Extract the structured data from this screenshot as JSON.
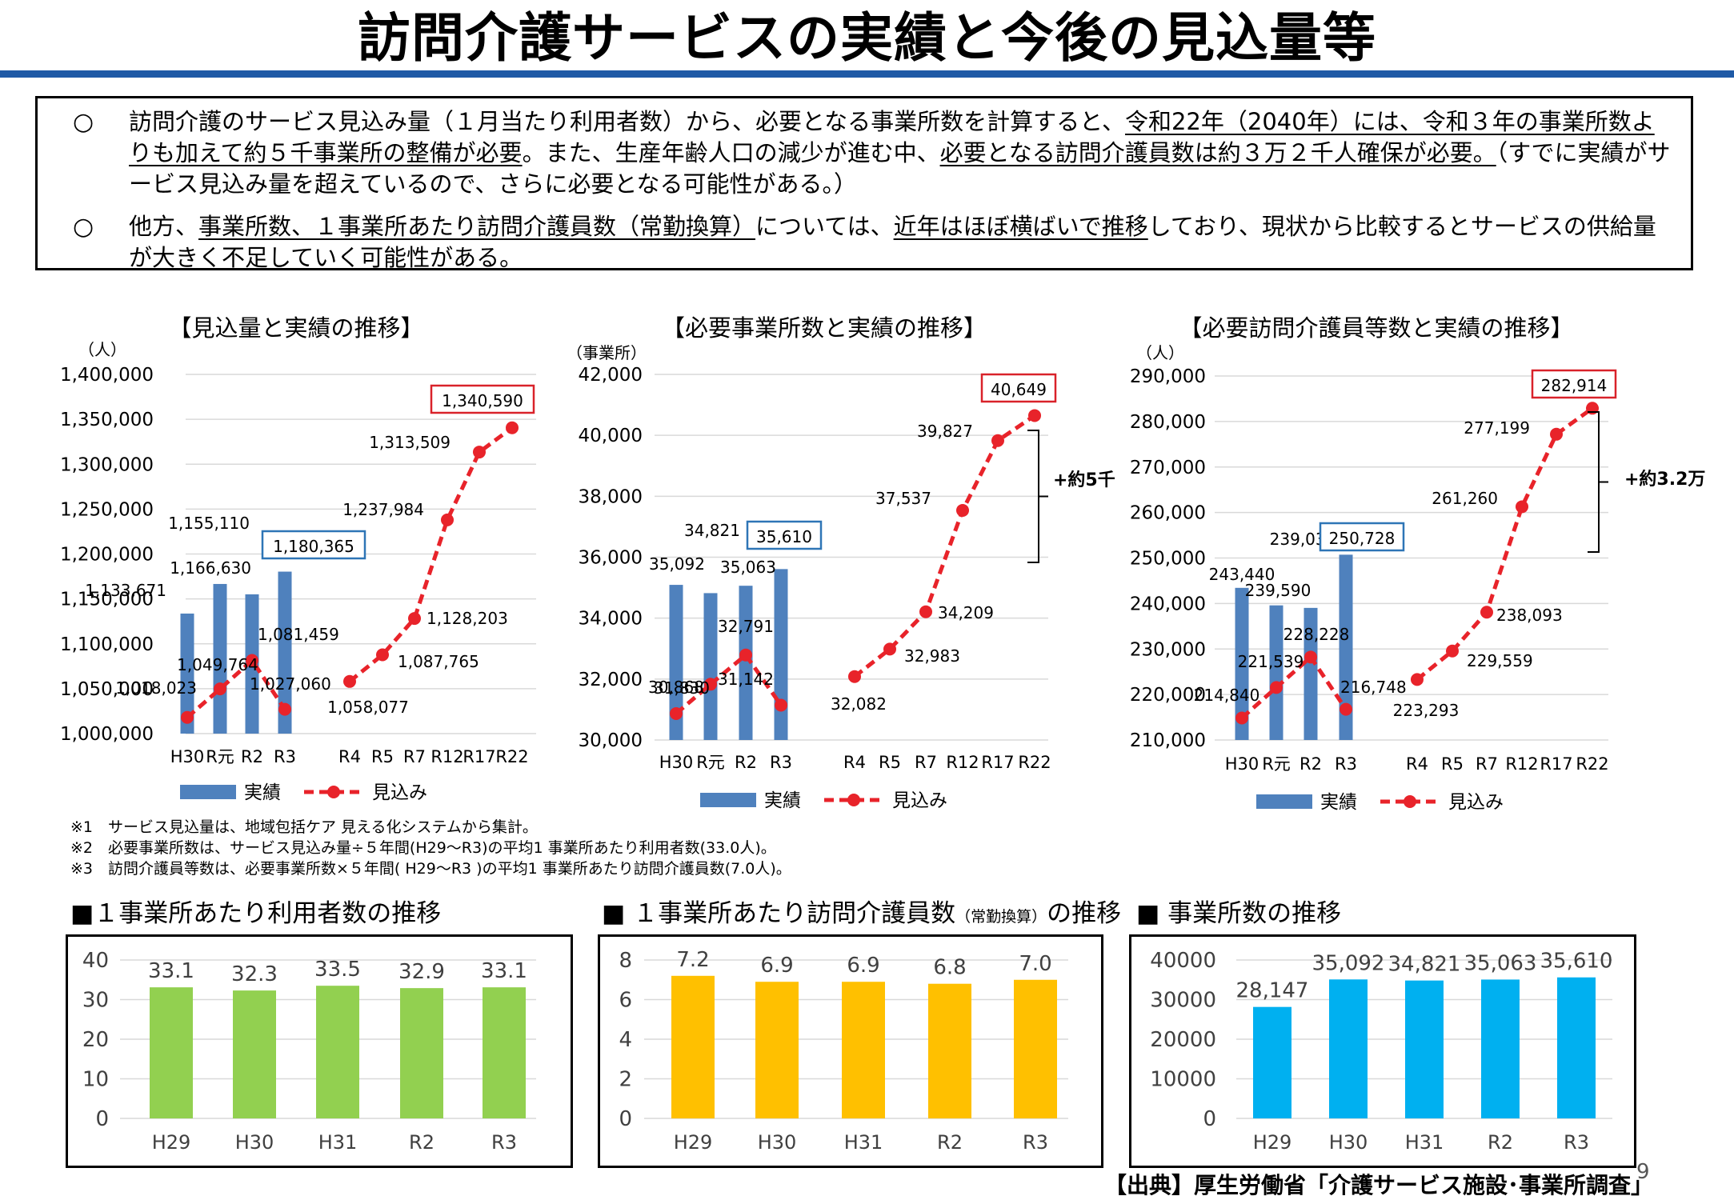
{
  "title": "訪問介護サービスの実績と今後の見込量等",
  "summary": {
    "p1_mark": "○",
    "p1_a": "訪問介護のサービス見込み量（１月当たり利用者数）から、必要となる事業所数を計算すると、",
    "p1_b": "令和22年（2040年）には、令和３年の事業所数よりも加えて約５千事業所の整備が必要",
    "p1_c": "。また、生産年齢人口の減少が進む中、",
    "p1_d": "必要となる訪問介護員数は約３万２千人確保が必要。",
    "p1_e": "（すでに実績がサービス見込み量を超えているので、さらに必要となる可能性がある。）",
    "p2_mark": "○",
    "p2_a": "他方、",
    "p2_b": "事業所数、１事業所あたり訪問介護員数（常勤換算）",
    "p2_c": "については、",
    "p2_d": "近年はほぼ横ばいで推移",
    "p2_e": "しており、現状から比較するとサービスの供給量が大きく不足していく可能性がある。"
  },
  "legend": {
    "actual": "実績",
    "forecast": "見込み"
  },
  "colors": {
    "actual_bar": "#4f81bd",
    "forecast_line": "#e8232a",
    "green": "#92d050",
    "yellow": "#ffc000",
    "cyan": "#00b0f0",
    "rule_blue": "#1f5aa6",
    "box_red": "#d9222a",
    "box_blue": "#2e75b6"
  },
  "chart_data": [
    {
      "type": "bar+line",
      "title": "【見込量と実績の推移】",
      "unit": "（人）",
      "categories": [
        "H30",
        "R元",
        "R2",
        "R3",
        "R4",
        "R5",
        "R7",
        "R12",
        "R17",
        "R22"
      ],
      "ylim": [
        1000000,
        1400000
      ],
      "yticks": [
        1000000,
        1050000,
        1100000,
        1150000,
        1200000,
        1250000,
        1300000,
        1350000,
        1400000
      ],
      "ytick_labels": [
        "1,000,000",
        "1,050,000",
        "1,100,000",
        "1,150,000",
        "1,200,000",
        "1,250,000",
        "1,300,000",
        "1,350,000",
        "1,400,000"
      ],
      "series": [
        {
          "name": "実績",
          "type": "bar",
          "values": [
            1133671,
            1166630,
            1155110,
            1180365,
            null,
            null,
            null,
            null,
            null,
            null
          ],
          "labels": [
            "1,133,671",
            "1,166,630",
            "1,155,110",
            "1,180,365"
          ]
        },
        {
          "name": "見込み",
          "type": "line",
          "values": [
            1018023,
            1049764,
            1081459,
            1027060,
            1058077,
            1087765,
            1128203,
            1237984,
            1313509,
            1340590
          ],
          "labels": [
            "1,018,023",
            "1,049,764",
            "1,081,459",
            "1,027,060",
            "1,058,077",
            "1,087,765",
            "1,128,203",
            "1,237,984",
            "1,313,509",
            "1,340,590"
          ]
        }
      ],
      "boxed_labels": [
        "1,180,365",
        "1,340,590"
      ],
      "bracket_label": ""
    },
    {
      "type": "bar+line",
      "title": "【必要事業所数と実績の推移】",
      "unit": "（事業所）",
      "categories": [
        "H30",
        "R元",
        "R2",
        "R3",
        "R4",
        "R5",
        "R7",
        "R12",
        "R17",
        "R22"
      ],
      "ylim": [
        30000,
        42000
      ],
      "yticks": [
        30000,
        32000,
        34000,
        36000,
        38000,
        40000,
        42000
      ],
      "ytick_labels": [
        "30,000",
        "32,000",
        "34,000",
        "36,000",
        "38,000",
        "40,000",
        "42,000"
      ],
      "series": [
        {
          "name": "実績",
          "type": "bar",
          "values": [
            35092,
            34821,
            35063,
            35610,
            null,
            null,
            null,
            null,
            null,
            null
          ],
          "labels": [
            "35,092",
            "34,821",
            "35,063",
            "35,610"
          ]
        },
        {
          "name": "見込み",
          "type": "line",
          "values": [
            30868,
            31830,
            32791,
            31142,
            32082,
            32983,
            34209,
            37537,
            39827,
            40649
          ],
          "labels": [
            "30,868",
            "31,830",
            "32,791",
            "31,142",
            "32,082",
            "32,983",
            "34,209",
            "37,537",
            "39,827",
            "40,649"
          ]
        }
      ],
      "boxed_labels": [
        "35,610",
        "40,649"
      ],
      "bracket_label": "+約5千"
    },
    {
      "type": "bar+line",
      "title": "【必要訪問介護員等数と実績の推移】",
      "unit": "（人）",
      "categories": [
        "H30",
        "R元",
        "R2",
        "R3",
        "R4",
        "R5",
        "R7",
        "R12",
        "R17",
        "R22"
      ],
      "ylim": [
        210000,
        290000
      ],
      "yticks": [
        210000,
        220000,
        230000,
        240000,
        250000,
        260000,
        270000,
        280000,
        290000
      ],
      "ytick_labels": [
        "210,000",
        "220,000",
        "230,000",
        "240,000",
        "250,000",
        "260,000",
        "270,000",
        "280,000",
        "290,000"
      ],
      "series": [
        {
          "name": "実績",
          "type": "bar",
          "values": [
            243440,
            239590,
            239036,
            250728,
            null,
            null,
            null,
            null,
            null,
            null
          ],
          "labels": [
            "243,440",
            "239,590",
            "239,036",
            "250,728"
          ]
        },
        {
          "name": "見込み",
          "type": "line",
          "values": [
            214840,
            221539,
            228228,
            216748,
            223293,
            229559,
            238093,
            261260,
            277199,
            282914
          ],
          "labels": [
            "214,840",
            "221,539",
            "228,228",
            "216,748",
            "223,293",
            "229,559",
            "238,093",
            "261,260",
            "277,199",
            "282,914"
          ]
        }
      ],
      "boxed_labels": [
        "250,728",
        "282,914"
      ],
      "bracket_label": "+約3.2万"
    },
    {
      "type": "bar",
      "title": "■１事業所あたり利用者数の推移",
      "categories": [
        "H29",
        "H30",
        "H31",
        "R2",
        "R3"
      ],
      "values": [
        33.1,
        32.3,
        33.5,
        32.9,
        33.1
      ],
      "labels": [
        "33.1",
        "32.3",
        "33.5",
        "32.9",
        "33.1"
      ],
      "ylim": [
        0,
        40
      ],
      "yticks": [
        0,
        10,
        20,
        30,
        40
      ],
      "ytick_labels": [
        "0",
        "10",
        "20",
        "30",
        "40"
      ],
      "color": "#92d050"
    },
    {
      "type": "bar",
      "title": "■ １事業所あたり訪問介護員数",
      "title_small": "（常勤換算）",
      "title_tail": "の推移",
      "categories": [
        "H29",
        "H30",
        "H31",
        "R2",
        "R3"
      ],
      "values": [
        7.2,
        6.9,
        6.9,
        6.8,
        7.0
      ],
      "labels": [
        "7.2",
        "6.9",
        "6.9",
        "6.8",
        "7.0"
      ],
      "ylim": [
        0,
        8
      ],
      "yticks": [
        0,
        2,
        4,
        6,
        8
      ],
      "ytick_labels": [
        "0",
        "2",
        "4",
        "6",
        "8"
      ],
      "color": "#ffc000"
    },
    {
      "type": "bar",
      "title": "■ 事業所数の推移",
      "categories": [
        "H29",
        "H30",
        "H31",
        "R2",
        "R3"
      ],
      "values": [
        28147,
        35092,
        34821,
        35063,
        35610
      ],
      "labels": [
        "28,147",
        "35,092",
        "34,821",
        "35,063",
        "35,610"
      ],
      "ylim": [
        0,
        40000
      ],
      "yticks": [
        0,
        10000,
        20000,
        30000,
        40000
      ],
      "ytick_labels": [
        "0",
        "10000",
        "20000",
        "30000",
        "40000"
      ],
      "color": "#00b0f0"
    }
  ],
  "notes": [
    "※1　サービス見込量は、地域包括ケア 見える化システムから集計。",
    "※2　必要事業所数は、サービス見込み量÷５年間(H29～R3)の平均1 事業所あたり利用者数(33.0人)。",
    "※3　訪問介護員等数は、必要事業所数×５年間( H29～R3 )の平均1 事業所あたり訪問介護員数(7.0人)。"
  ],
  "source": "【出典】厚生労働省「介護サービス施設･事業所調査」",
  "page_number": "9"
}
